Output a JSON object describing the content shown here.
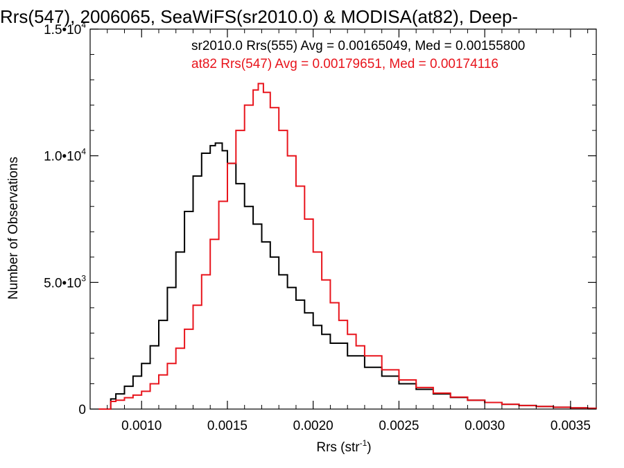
{
  "chart_data": {
    "type": "line",
    "style": "step histogram",
    "title": "Rrs(547), 2006065, SeaWiFS(sr2010.0) & MODISA(at82), Deep-",
    "xlabel_base": "Rrs (str",
    "xlabel_sup": "-1",
    "xlabel_end": ")",
    "ylabel": "Number of Observations",
    "xlim": [
      0.0007,
      0.00365
    ],
    "ylim": [
      0,
      15000
    ],
    "x_ticks": [
      {
        "value": 0.001,
        "label": "0.0010"
      },
      {
        "value": 0.0015,
        "label": "0.0015"
      },
      {
        "value": 0.002,
        "label": "0.0020"
      },
      {
        "value": 0.0025,
        "label": "0.0025"
      },
      {
        "value": 0.003,
        "label": "0.0030"
      },
      {
        "value": 0.0035,
        "label": "0.0035"
      }
    ],
    "y_ticks": [
      {
        "value": 0,
        "base": "0",
        "exp": ""
      },
      {
        "value": 5000,
        "base": "5.0•10",
        "exp": "3"
      },
      {
        "value": 10000,
        "base": "1.0•10",
        "exp": "4"
      },
      {
        "value": 15000,
        "base": "1.5•10",
        "exp": "4"
      }
    ],
    "grid": false,
    "annotations": [
      {
        "text": "sr2010.0 Rrs(555) Avg = 0.00165049, Med = 0.00155800",
        "color": "#000000"
      },
      {
        "text": "at82 Rrs(547) Avg = 0.00179651, Med = 0.00174116",
        "color": "#e8141c"
      }
    ],
    "series": [
      {
        "color": "#000000",
        "x": [
          0.00075,
          0.00078,
          0.0008,
          0.00082,
          0.00085,
          0.0009,
          0.00095,
          0.001,
          0.00105,
          0.0011,
          0.00115,
          0.0012,
          0.00125,
          0.0013,
          0.00135,
          0.0014,
          0.00143,
          0.00147,
          0.0015,
          0.00155,
          0.0016,
          0.00165,
          0.0017,
          0.00175,
          0.0018,
          0.00185,
          0.0019,
          0.00195,
          0.002,
          0.00205,
          0.0021,
          0.0022,
          0.0023,
          0.0024,
          0.0025,
          0.0026,
          0.0027,
          0.0028,
          0.0029,
          0.003,
          0.0031,
          0.0032,
          0.0033,
          0.0034,
          0.0035,
          0.0036,
          0.00365
        ],
        "y": [
          0,
          0,
          0,
          400,
          600,
          900,
          1300,
          1800,
          2500,
          3500,
          4800,
          6200,
          7800,
          9200,
          10100,
          10400,
          10500,
          10200,
          9700,
          8900,
          8000,
          7300,
          6600,
          6000,
          5300,
          4800,
          4300,
          3800,
          3300,
          2950,
          2600,
          2100,
          1650,
          1300,
          1000,
          780,
          600,
          460,
          350,
          260,
          190,
          140,
          100,
          70,
          50,
          30,
          20
        ]
      },
      {
        "color": "#e8141c",
        "x": [
          0.00075,
          0.00078,
          0.0008,
          0.00082,
          0.00085,
          0.0009,
          0.00095,
          0.001,
          0.00105,
          0.0011,
          0.00115,
          0.0012,
          0.00125,
          0.0013,
          0.00135,
          0.0014,
          0.00145,
          0.0015,
          0.00155,
          0.0016,
          0.00165,
          0.00168,
          0.00171,
          0.00175,
          0.0018,
          0.00185,
          0.0019,
          0.00195,
          0.002,
          0.00205,
          0.0021,
          0.00215,
          0.0022,
          0.00225,
          0.0023,
          0.0024,
          0.0025,
          0.0026,
          0.0027,
          0.0028,
          0.0029,
          0.003,
          0.0031,
          0.0032,
          0.0033,
          0.0034,
          0.0035,
          0.0036,
          0.00365
        ],
        "y": [
          0,
          0,
          0,
          300,
          350,
          450,
          550,
          700,
          1000,
          1350,
          1800,
          2400,
          3150,
          4100,
          5300,
          6700,
          8200,
          9700,
          11000,
          12000,
          12600,
          12850,
          12500,
          11900,
          11000,
          10000,
          8800,
          7500,
          6200,
          5100,
          4200,
          3500,
          2950,
          2500,
          2100,
          1550,
          1150,
          850,
          630,
          470,
          350,
          260,
          190,
          140,
          100,
          70,
          50,
          30,
          20
        ]
      }
    ]
  }
}
